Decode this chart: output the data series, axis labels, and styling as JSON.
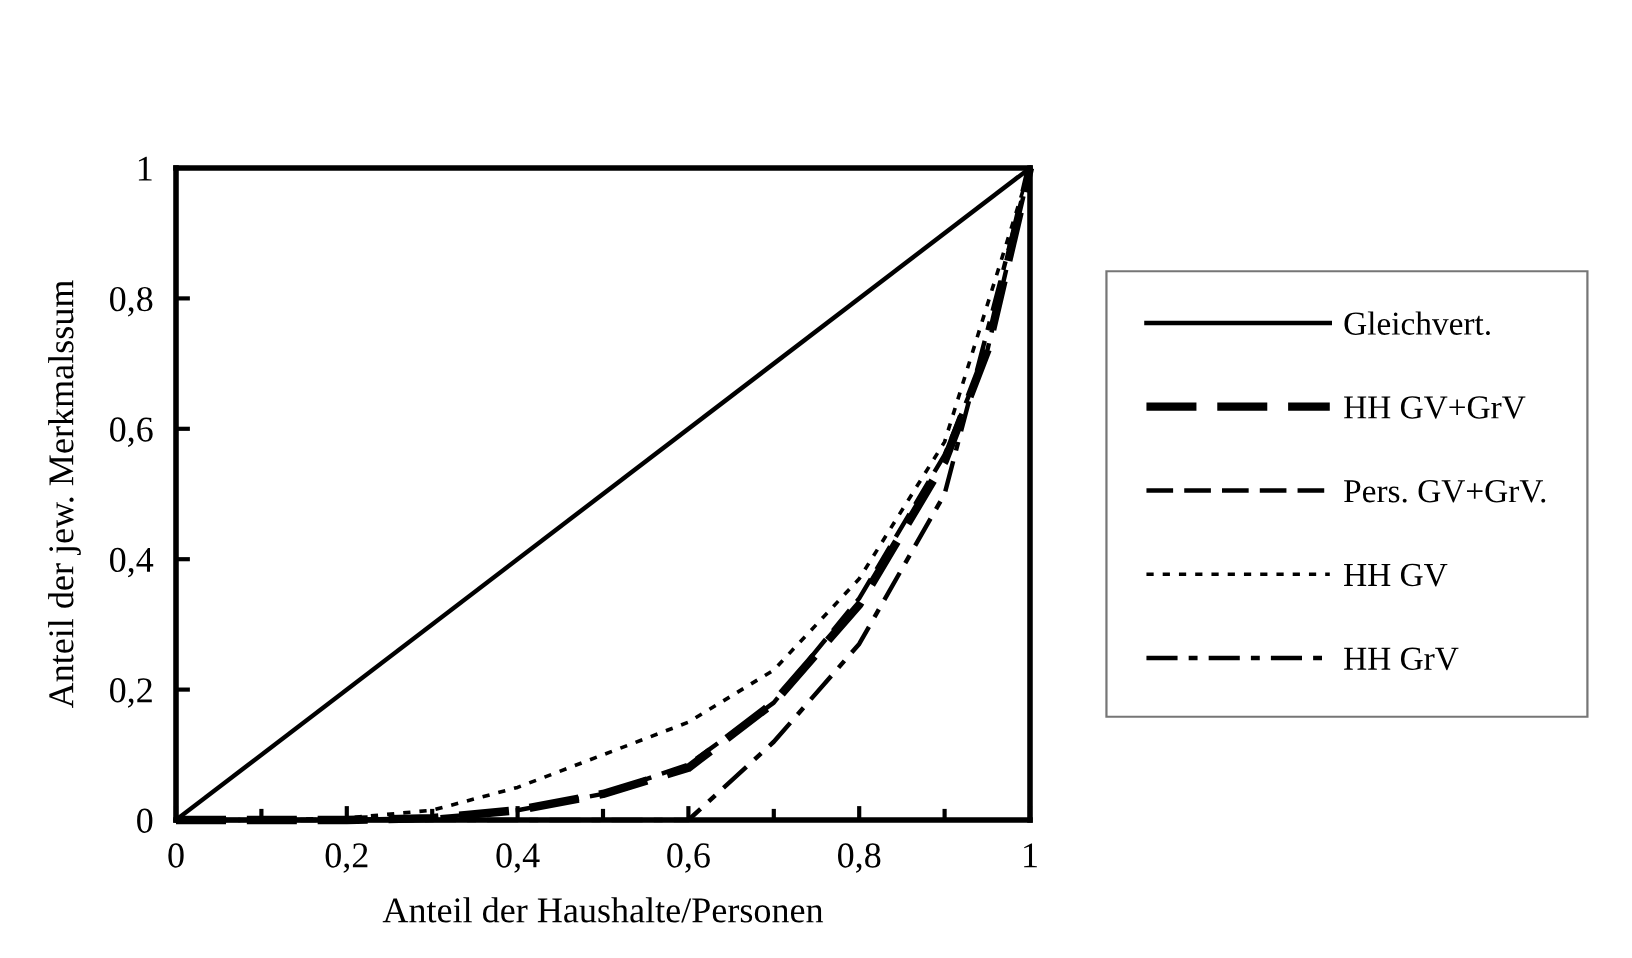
{
  "chart_data": {
    "type": "line",
    "xlabel": "Anteil der Haushalte/Personen",
    "ylabel": "Anteil der jew. Merkmalssum",
    "xlim": [
      0,
      1
    ],
    "ylim": [
      0,
      1
    ],
    "xticks": [
      0,
      {
        "value": 0.2,
        "label": "0,2"
      },
      {
        "value": 0.4,
        "label": "0,4"
      },
      {
        "value": 0.6,
        "label": "0,6"
      },
      {
        "value": 0.8,
        "label": "0,8"
      },
      1
    ],
    "yticks": [
      0,
      {
        "value": 0.2,
        "label": "0,2"
      },
      {
        "value": 0.4,
        "label": "0,4"
      },
      {
        "value": 0.6,
        "label": "0,6"
      },
      {
        "value": 0.8,
        "label": "0,8"
      },
      1
    ],
    "grid": false,
    "legend": "right",
    "marker": "none",
    "series": [
      {
        "name": "Gleichvert.",
        "color": "#000000",
        "line_style": "solid",
        "x": [
          0,
          1
        ],
        "values": [
          0,
          1
        ]
      },
      {
        "name": "HH GV+GrV",
        "color": "#000000",
        "line_style": "dashed",
        "x": [
          0,
          0.1,
          0.2,
          0.3,
          0.4,
          0.5,
          0.6,
          0.7,
          0.8,
          0.9,
          0.95,
          1
        ],
        "values": [
          0,
          0,
          0,
          0.003,
          0.015,
          0.04,
          0.08,
          0.18,
          0.33,
          0.55,
          0.72,
          1
        ]
      },
      {
        "name": "Pers. GV+GrV.",
        "color": "#000000",
        "line_style": "dashed",
        "x": [
          0,
          0.1,
          0.2,
          0.3,
          0.4,
          0.5,
          0.6,
          0.7,
          0.8,
          0.9,
          0.95,
          1
        ],
        "values": [
          0,
          0,
          0,
          0.003,
          0.015,
          0.04,
          0.085,
          0.18,
          0.34,
          0.56,
          0.72,
          1
        ]
      },
      {
        "name": "HH GV",
        "color": "#000000",
        "line_style": "dotted",
        "x": [
          0,
          0.1,
          0.2,
          0.3,
          0.4,
          0.5,
          0.6,
          0.7,
          0.8,
          0.9,
          1
        ],
        "values": [
          0,
          0,
          0.003,
          0.015,
          0.05,
          0.1,
          0.15,
          0.23,
          0.37,
          0.58,
          1
        ]
      },
      {
        "name": "HH GrV",
        "color": "#000000",
        "line_style": "dashdot",
        "x": [
          0,
          0.6,
          0.7,
          0.8,
          0.9,
          1
        ],
        "values": [
          0,
          0,
          0.12,
          0.27,
          0.5,
          1
        ]
      }
    ]
  }
}
